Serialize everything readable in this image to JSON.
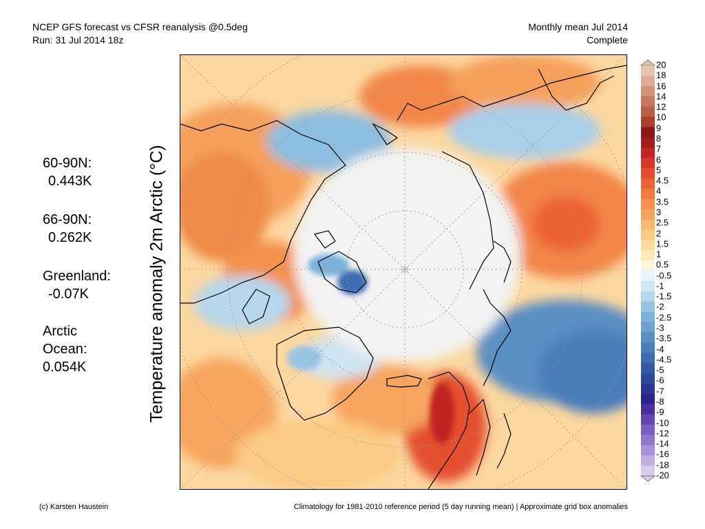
{
  "header": {
    "line1": "NCEP GFS forecast vs CFSR reanalysis @0.5deg",
    "line2": "Run: 31 Jul 2014 18z",
    "right1": "Monthly mean Jul 2014",
    "right2": "Complete"
  },
  "ylabel": "Temperature anomaly 2m Arctic (°C)",
  "stats": {
    "n60": {
      "label": "60-90N:",
      "value": "0.443K"
    },
    "n66": {
      "label": "66-90N:",
      "value": "0.262K"
    },
    "greenland": {
      "label": "Greenland:",
      "value": "-0.07K"
    },
    "arctic": {
      "label1": "Arctic",
      "label2": "Ocean:",
      "value": "0.054K"
    }
  },
  "colorbar": {
    "labels": [
      "20",
      "18",
      "16",
      "14",
      "12",
      "10",
      "9",
      "8",
      "7",
      "6",
      "5",
      "4.5",
      "4",
      "3.5",
      "3",
      "2.5",
      "2",
      "1.5",
      "1",
      "0.5",
      "-0.5",
      "-1",
      "-1.5",
      "-2",
      "-2.5",
      "-3",
      "-3.5",
      "-4",
      "-4.5",
      "-5",
      "-6",
      "-7",
      "-8",
      "-9",
      "-10",
      "-12",
      "-14",
      "-16",
      "-18",
      "-20"
    ],
    "colors": [
      "#e8c4b0",
      "#dfab92",
      "#d59175",
      "#c9775c",
      "#bb5f46",
      "#a93f2c",
      "#8e1818",
      "#a51c1c",
      "#c02424",
      "#d63628",
      "#e44c30",
      "#ec6236",
      "#f27a40",
      "#f5904e",
      "#f7a55e",
      "#f9b870",
      "#fbca84",
      "#fcda9a",
      "#fde9b8",
      "#fdf5dc",
      "#eaf3fa",
      "#d2e7f4",
      "#b6d7ec",
      "#98c4e3",
      "#7cb2da",
      "#6ba0d0",
      "#5a8fc4",
      "#4a7dba",
      "#3e6cb0",
      "#3459a5",
      "#2f479c",
      "#2c3594",
      "#2b2390",
      "#4a2fa0",
      "#6645b0",
      "#7b5ec0",
      "#9077cc",
      "#a891d8",
      "#c0aee3",
      "#d8cbee"
    ]
  },
  "footer": {
    "left": "(c) Karsten Haustein",
    "right": "Climatology for 1981-2010 reference period (5 day running mean) | Approximate grid box anomalies"
  }
}
